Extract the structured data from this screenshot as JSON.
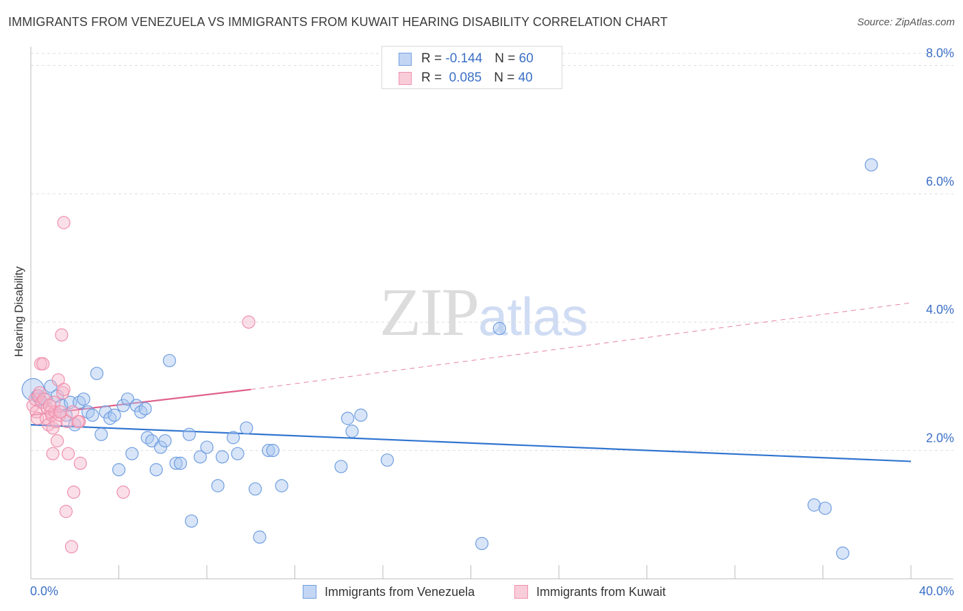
{
  "title": "IMMIGRANTS FROM VENEZUELA VS IMMIGRANTS FROM KUWAIT HEARING DISABILITY CORRELATION CHART",
  "source": "Source: ZipAtlas.com",
  "watermark": {
    "zip": "ZIP",
    "atlas": "atlas"
  },
  "legend": {
    "venezuela": {
      "r_label": "R =",
      "r_value": "-0.144",
      "n_label": "N =",
      "n_value": "60"
    },
    "kuwait": {
      "r_label": "R =",
      "r_value": "0.085",
      "n_label": "N =",
      "n_value": "40"
    }
  },
  "colors": {
    "venezuela_fill": "#a9c6f0",
    "venezuela_stroke": "#6e9de0",
    "venezuela_line": "#2f74d0",
    "kuwait_fill": "#f6b9cb",
    "kuwait_stroke": "#ee8fab",
    "kuwait_line": "#e0608a",
    "tick_text": "#3b6fc6",
    "grid": "#dddddd"
  },
  "chart_data": {
    "type": "scatter",
    "title": "IMMIGRANTS FROM VENEZUELA VS IMMIGRANTS FROM KUWAIT HEARING DISABILITY CORRELATION CHART",
    "xlabel": "",
    "ylabel": "Hearing Disability",
    "xlim": [
      0,
      40
    ],
    "ylim": [
      0,
      8.4
    ],
    "x_tick_labels": [
      "0.0%",
      "40.0%"
    ],
    "y_ticks": [
      2,
      4,
      6,
      8
    ],
    "y_tick_labels": [
      "2.0%",
      "4.0%",
      "6.0%",
      "8.0%"
    ],
    "grid": true,
    "legend_placement": "bottom-center",
    "series": [
      {
        "name": "Immigrants from Venezuela",
        "trend": {
          "x": [
            0,
            40
          ],
          "y": [
            2.4,
            1.83
          ],
          "style": "solid"
        },
        "points": [
          [
            0.1,
            2.95,
            28
          ],
          [
            0.3,
            2.85,
            14
          ],
          [
            0.5,
            2.75,
            14
          ],
          [
            0.9,
            3.0,
            14
          ],
          [
            1.2,
            2.85,
            14
          ],
          [
            1.4,
            2.7,
            14
          ],
          [
            1.6,
            2.55,
            14
          ],
          [
            1.8,
            2.75,
            14
          ],
          [
            2.0,
            2.4,
            14
          ],
          [
            2.2,
            2.75,
            14
          ],
          [
            2.4,
            2.8,
            14
          ],
          [
            2.6,
            2.6,
            14
          ],
          [
            2.8,
            2.55,
            14
          ],
          [
            3.0,
            3.2,
            14
          ],
          [
            3.2,
            2.25,
            14
          ],
          [
            3.4,
            2.6,
            14
          ],
          [
            3.6,
            2.5,
            14
          ],
          [
            3.8,
            2.55,
            14
          ],
          [
            4.0,
            1.7,
            14
          ],
          [
            4.2,
            2.7,
            14
          ],
          [
            4.4,
            2.8,
            14
          ],
          [
            4.6,
            1.95,
            14
          ],
          [
            4.8,
            2.7,
            14
          ],
          [
            5.0,
            2.6,
            14
          ],
          [
            5.2,
            2.65,
            14
          ],
          [
            5.3,
            2.2,
            14
          ],
          [
            5.5,
            2.15,
            14
          ],
          [
            5.7,
            1.7,
            14
          ],
          [
            5.9,
            2.05,
            14
          ],
          [
            6.1,
            2.15,
            14
          ],
          [
            6.3,
            3.4,
            14
          ],
          [
            6.6,
            1.8,
            14
          ],
          [
            6.8,
            1.8,
            14
          ],
          [
            7.2,
            2.25,
            14
          ],
          [
            7.3,
            0.9,
            14
          ],
          [
            7.7,
            1.9,
            14
          ],
          [
            8.0,
            2.05,
            14
          ],
          [
            8.5,
            1.45,
            14
          ],
          [
            8.7,
            1.9,
            14
          ],
          [
            9.2,
            2.2,
            14
          ],
          [
            9.4,
            1.95,
            14
          ],
          [
            9.8,
            2.35,
            14
          ],
          [
            10.2,
            1.4,
            14
          ],
          [
            10.4,
            0.65,
            14
          ],
          [
            10.8,
            2.0,
            14
          ],
          [
            11.0,
            2.0,
            14
          ],
          [
            11.4,
            1.45,
            14
          ],
          [
            14.1,
            1.75,
            14
          ],
          [
            14.4,
            2.5,
            14
          ],
          [
            14.6,
            2.3,
            14
          ],
          [
            15.0,
            2.55,
            14
          ],
          [
            16.2,
            1.85,
            14
          ],
          [
            20.5,
            0.55,
            14
          ],
          [
            21.3,
            3.9,
            14
          ],
          [
            35.6,
            1.15,
            14
          ],
          [
            36.1,
            1.1,
            14
          ],
          [
            36.9,
            0.4,
            14
          ],
          [
            38.2,
            6.45,
            14
          ],
          [
            0.4,
            2.8,
            14
          ],
          [
            0.7,
            2.8,
            14
          ]
        ]
      },
      {
        "name": "Immigrants from Kuwait",
        "trend": {
          "x": [
            0,
            10
          ],
          "y": [
            2.55,
            2.95
          ],
          "style": "solid",
          "extension": {
            "x": [
              10,
              40
            ],
            "y": [
              2.95,
              4.3
            ],
            "style": "dashed"
          }
        },
        "points": [
          [
            0.1,
            2.7,
            14
          ],
          [
            0.2,
            2.8,
            14
          ],
          [
            0.25,
            2.6,
            14
          ],
          [
            0.3,
            2.5,
            14
          ],
          [
            0.35,
            2.85,
            14
          ],
          [
            0.4,
            2.9,
            14
          ],
          [
            0.45,
            3.35,
            14
          ],
          [
            0.5,
            2.75,
            14
          ],
          [
            0.55,
            3.35,
            14
          ],
          [
            0.6,
            2.8,
            14
          ],
          [
            0.7,
            2.5,
            14
          ],
          [
            0.75,
            2.65,
            14
          ],
          [
            0.8,
            2.4,
            14
          ],
          [
            0.9,
            2.6,
            14
          ],
          [
            0.95,
            2.55,
            14
          ],
          [
            1.0,
            2.35,
            14
          ],
          [
            1.0,
            1.95,
            14
          ],
          [
            1.05,
            2.75,
            14
          ],
          [
            1.1,
            2.6,
            14
          ],
          [
            1.15,
            2.45,
            14
          ],
          [
            1.2,
            2.15,
            14
          ],
          [
            1.25,
            3.1,
            14
          ],
          [
            1.3,
            2.55,
            14
          ],
          [
            1.35,
            2.6,
            14
          ],
          [
            1.4,
            3.8,
            14
          ],
          [
            1.45,
            2.9,
            14
          ],
          [
            1.5,
            2.95,
            14
          ],
          [
            1.6,
            1.05,
            14
          ],
          [
            1.65,
            2.45,
            14
          ],
          [
            1.7,
            1.95,
            14
          ],
          [
            1.85,
            0.5,
            14
          ],
          [
            1.95,
            1.35,
            14
          ],
          [
            1.5,
            5.55,
            14
          ],
          [
            2.2,
            2.45,
            14
          ],
          [
            2.15,
            2.45,
            14
          ],
          [
            2.25,
            1.8,
            14
          ],
          [
            1.9,
            2.6,
            14
          ],
          [
            0.85,
            2.7,
            14
          ],
          [
            4.2,
            1.35,
            14
          ],
          [
            9.9,
            4.0,
            14
          ]
        ]
      }
    ]
  },
  "bottom_legend": {
    "venezuela_label": "Immigrants from Venezuela",
    "kuwait_label": "Immigrants from Kuwait"
  }
}
